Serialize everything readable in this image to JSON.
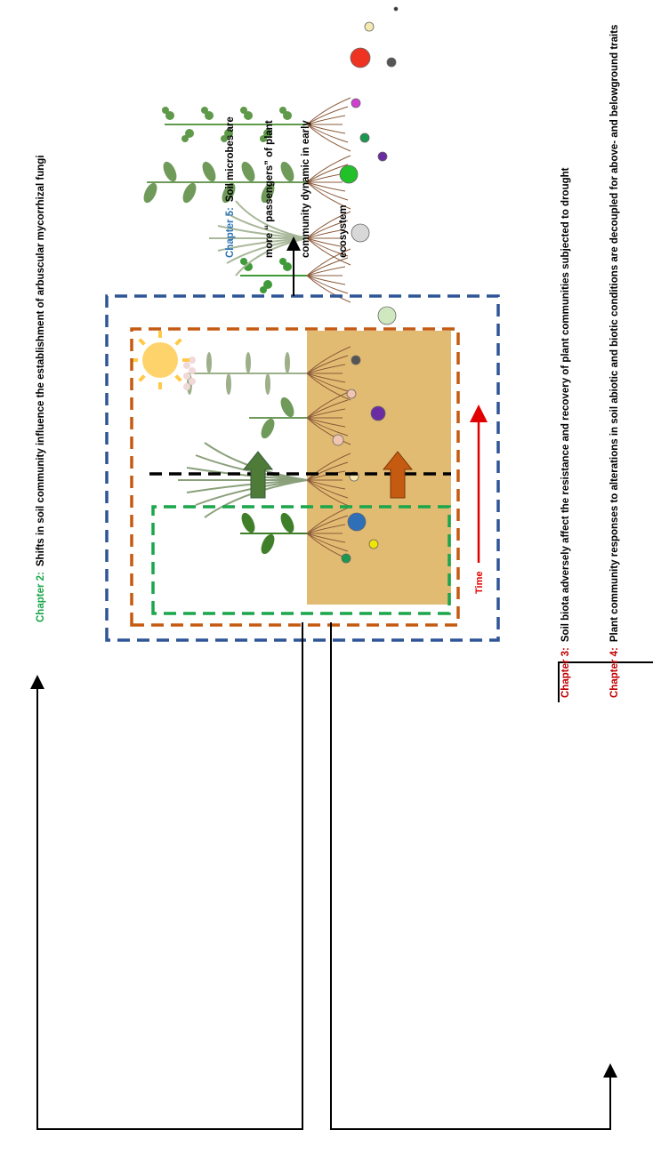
{
  "chapters": [
    {
      "label": "Chapter 2:",
      "text": "Shifts in soil community influence the establishment of arbuscular mycorrhizal fungi"
    },
    {
      "label": "Chapter 3:",
      "text": "Soil biota adversely affect the resistance and recovery of plant communities subjected to drought"
    },
    {
      "label": "Chapter 4:",
      "text": "Plant community responses to alterations in soil abiotic and biotic conditions are decoupled for above- and belowground traits"
    },
    {
      "label": "Chapter 5:",
      "lines": [
        "Soil microbes are",
        "more “ passengers” of plant",
        "community dynamic in early",
        "ecosystem"
      ]
    }
  ],
  "time_label": "Time"
}
